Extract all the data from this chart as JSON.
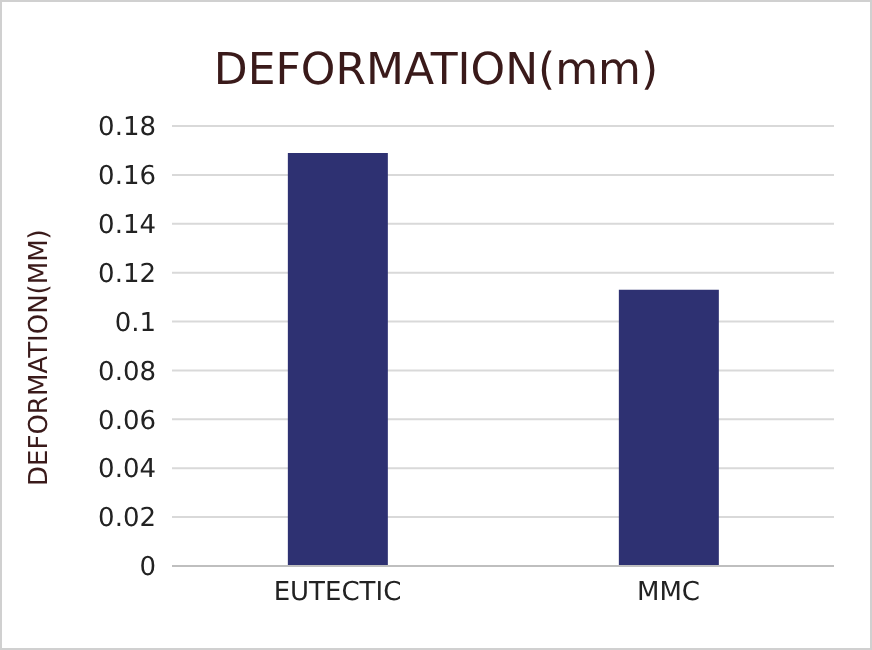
{
  "chart_data": {
    "type": "bar",
    "title": "DEFORMATION(mm)",
    "ylabel": "DEFORMATION(MM)",
    "categories": [
      "EUTECTIC",
      "MMC"
    ],
    "values": [
      0.169,
      0.113
    ],
    "color": "#2e3172",
    "ylim": [
      0,
      0.18
    ],
    "yticks": [
      0,
      {
        "value": 0.02,
        "label": "0.02"
      },
      {
        "value": 0.04,
        "label": "0.04"
      },
      {
        "value": 0.06,
        "label": "0.06"
      },
      {
        "value": 0.08,
        "label": "0.08"
      },
      {
        "value": 0.1,
        "label": "0.1"
      },
      {
        "value": 0.12,
        "label": "0.12"
      },
      {
        "value": 0.14,
        "label": "0.14"
      },
      {
        "value": 0.16,
        "label": "0.16"
      },
      {
        "value": 0.18,
        "label": "0.18"
      }
    ],
    "grid": "y"
  }
}
